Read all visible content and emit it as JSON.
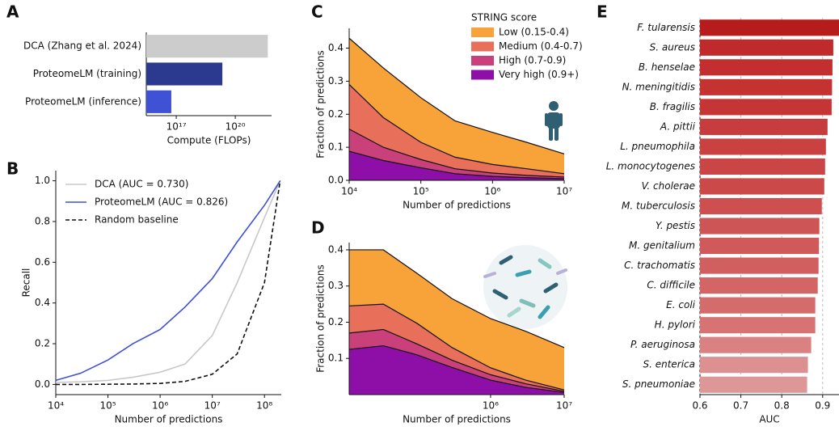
{
  "chart_data": [
    {
      "type": "barh",
      "panel": "A",
      "xlabel": "Compute (FLOPs)",
      "xlog": true,
      "categories": [
        "DCA (Zhang et al. 2024)",
        "ProteomeLM (training)",
        "ProteomeLM (inference)"
      ],
      "values": [
        4.5e+21,
        2.2e+19,
        5.6e+16
      ],
      "colors": [
        "#cccccc",
        "#2b3a8f",
        "#3f51d4"
      ],
      "xlim": [
        3000000000000000.0,
        7e+21
      ],
      "xticks": [
        {
          "value": 1e+17,
          "label": "10¹⁷"
        },
        {
          "value": 1e+20,
          "label": "10²⁰"
        }
      ],
      "grid": false
    },
    {
      "type": "line",
      "panel": "B",
      "xlabel": "Number of predictions",
      "ylabel": "Recall",
      "xlog": true,
      "x": [
        10000.0,
        30000.0,
        100000.0,
        300000.0,
        1000000.0,
        3000000.0,
        10000000.0,
        30000000.0,
        100000000.0,
        200000000.0
      ],
      "series": [
        {
          "name": "DCA  (AUC = 0.730)",
          "color": "#c8c8c8",
          "dash": false,
          "values": [
            0.01,
            0.013,
            0.02,
            0.035,
            0.06,
            0.1,
            0.24,
            0.5,
            0.82,
            1.0
          ]
        },
        {
          "name": "ProteomeLM (AUC = 0.826)",
          "color": "#3f51d4",
          "dash": false,
          "values": [
            0.02,
            0.055,
            0.12,
            0.2,
            0.27,
            0.38,
            0.52,
            0.7,
            0.88,
            1.0
          ]
        },
        {
          "name": "Random baseline",
          "color": "#111111",
          "dash": true,
          "values": [
            0.0,
            0.0,
            0.001,
            0.002,
            0.005,
            0.015,
            0.05,
            0.15,
            0.5,
            1.0
          ]
        }
      ],
      "xlim": [
        10000.0,
        210000000.0
      ],
      "ylim": [
        -0.05,
        1.05
      ],
      "xticks": [
        {
          "value": 10000.0,
          "label": "10⁴"
        },
        {
          "value": 100000.0,
          "label": "10⁵"
        },
        {
          "value": 1000000.0,
          "label": "10⁶"
        },
        {
          "value": 10000000.0,
          "label": "10⁷"
        },
        {
          "value": 100000000.0,
          "label": "10⁸"
        }
      ],
      "yticks": [
        {
          "value": 0,
          "label": "0.0"
        },
        0.2,
        0.4,
        0.6,
        0.8,
        {
          "value": 1,
          "label": "1.0"
        }
      ],
      "legend": "upper left"
    },
    {
      "type": "area",
      "panel": "C",
      "xlabel": "Number of predictions",
      "ylabel": "Fraction of predictions",
      "xlog": true,
      "legend_title": "STRING score",
      "legend": "upper right",
      "x": [
        10000.0,
        30000.0,
        100000.0,
        300000.0,
        1000000.0,
        3000000.0,
        10000000.0
      ],
      "series": [
        {
          "name": "Low (0.15-0.4)",
          "color": "#f8a23a",
          "values": [
            0.14,
            0.15,
            0.135,
            0.11,
            0.097,
            0.08,
            0.06
          ]
        },
        {
          "name": "Medium (0.4-0.7)",
          "color": "#e8705a",
          "values": [
            0.135,
            0.09,
            0.052,
            0.035,
            0.026,
            0.02,
            0.01
          ]
        },
        {
          "name": "High (0.7-0.9)",
          "color": "#c9407a",
          "values": [
            0.067,
            0.04,
            0.025,
            0.015,
            0.01,
            0.007,
            0.005
          ]
        },
        {
          "name": "Very high (0.9+)",
          "color": "#8e0fa8",
          "values": [
            0.088,
            0.06,
            0.038,
            0.02,
            0.012,
            0.008,
            0.005
          ]
        }
      ],
      "xlim": [
        10000.0,
        10000000.0
      ],
      "ylim": [
        0,
        0.46
      ],
      "xticks": [
        {
          "value": 10000.0,
          "label": "10⁴"
        },
        {
          "value": 100000.0,
          "label": "10⁵"
        },
        {
          "value": 1000000.0,
          "label": "10⁶"
        },
        {
          "value": 10000000.0,
          "label": "10⁷"
        }
      ],
      "yticks": [
        {
          "value": 0,
          "label": "0.0"
        },
        0.1,
        0.2,
        0.3,
        0.4
      ]
    },
    {
      "type": "area",
      "panel": "D",
      "xlabel": "Number of predictions",
      "ylabel": "Fraction of predictions",
      "xlog": true,
      "x": [
        12000.0,
        35000.0,
        100000.0,
        300000.0,
        1000000.0,
        3000000.0,
        10000000.0
      ],
      "series": [
        {
          "color": "#f8a23a",
          "values": [
            0.155,
            0.15,
            0.138,
            0.135,
            0.136,
            0.135,
            0.117
          ]
        },
        {
          "color": "#e8705a",
          "values": [
            0.075,
            0.07,
            0.057,
            0.035,
            0.019,
            0.01,
            0.004
          ]
        },
        {
          "color": "#c9407a",
          "values": [
            0.045,
            0.045,
            0.03,
            0.02,
            0.015,
            0.01,
            0.003
          ]
        },
        {
          "color": "#8e0fa8",
          "values": [
            0.125,
            0.135,
            0.11,
            0.075,
            0.04,
            0.02,
            0.006
          ]
        }
      ],
      "xlim": [
        12000.0,
        10000000.0
      ],
      "ylim": [
        0,
        0.42
      ],
      "xticks": [
        {
          "value": 1000000.0,
          "label": "10⁶"
        },
        {
          "value": 10000000.0,
          "label": "10⁷"
        }
      ],
      "yticks": [
        0.1,
        0.2,
        0.3,
        0.4
      ]
    },
    {
      "type": "barh",
      "panel": "E",
      "xlabel": "AUC",
      "xlog": false,
      "italic_labels": true,
      "categories": [
        "F. tularensis",
        "S. aureus",
        "B. henselae",
        "N. meningitidis",
        "B. fragilis",
        "A. pittii",
        "L. pneumophila",
        "L. monocytogenes",
        "V. cholerae",
        "M. tuberculosis",
        "Y. pestis",
        "M. genitalium",
        "C. trachomatis",
        "C. difficile",
        "E. coli",
        "H. pylori",
        "P. aeruginosa",
        "S. enterica",
        "S. pneumoniae"
      ],
      "values": [
        0.94,
        0.926,
        0.924,
        0.923,
        0.922,
        0.912,
        0.908,
        0.906,
        0.904,
        0.898,
        0.892,
        0.891,
        0.89,
        0.888,
        0.882,
        0.882,
        0.872,
        0.864,
        0.862
      ],
      "colors": [
        "#b71c1c",
        "#c12a2a",
        "#c32f2f",
        "#c43232",
        "#c53535",
        "#c73c3c",
        "#c94141",
        "#ca4545",
        "#cb4949",
        "#cd4f4f",
        "#ce5555",
        "#d05a5a",
        "#d15f5f",
        "#d36565",
        "#d56c6c",
        "#d77373",
        "#da8282",
        "#dd9090",
        "#de9797"
      ],
      "xlim": [
        0.6,
        0.94
      ],
      "xticks": [
        0.6,
        0.7,
        0.8,
        0.9
      ],
      "grid": true
    }
  ]
}
